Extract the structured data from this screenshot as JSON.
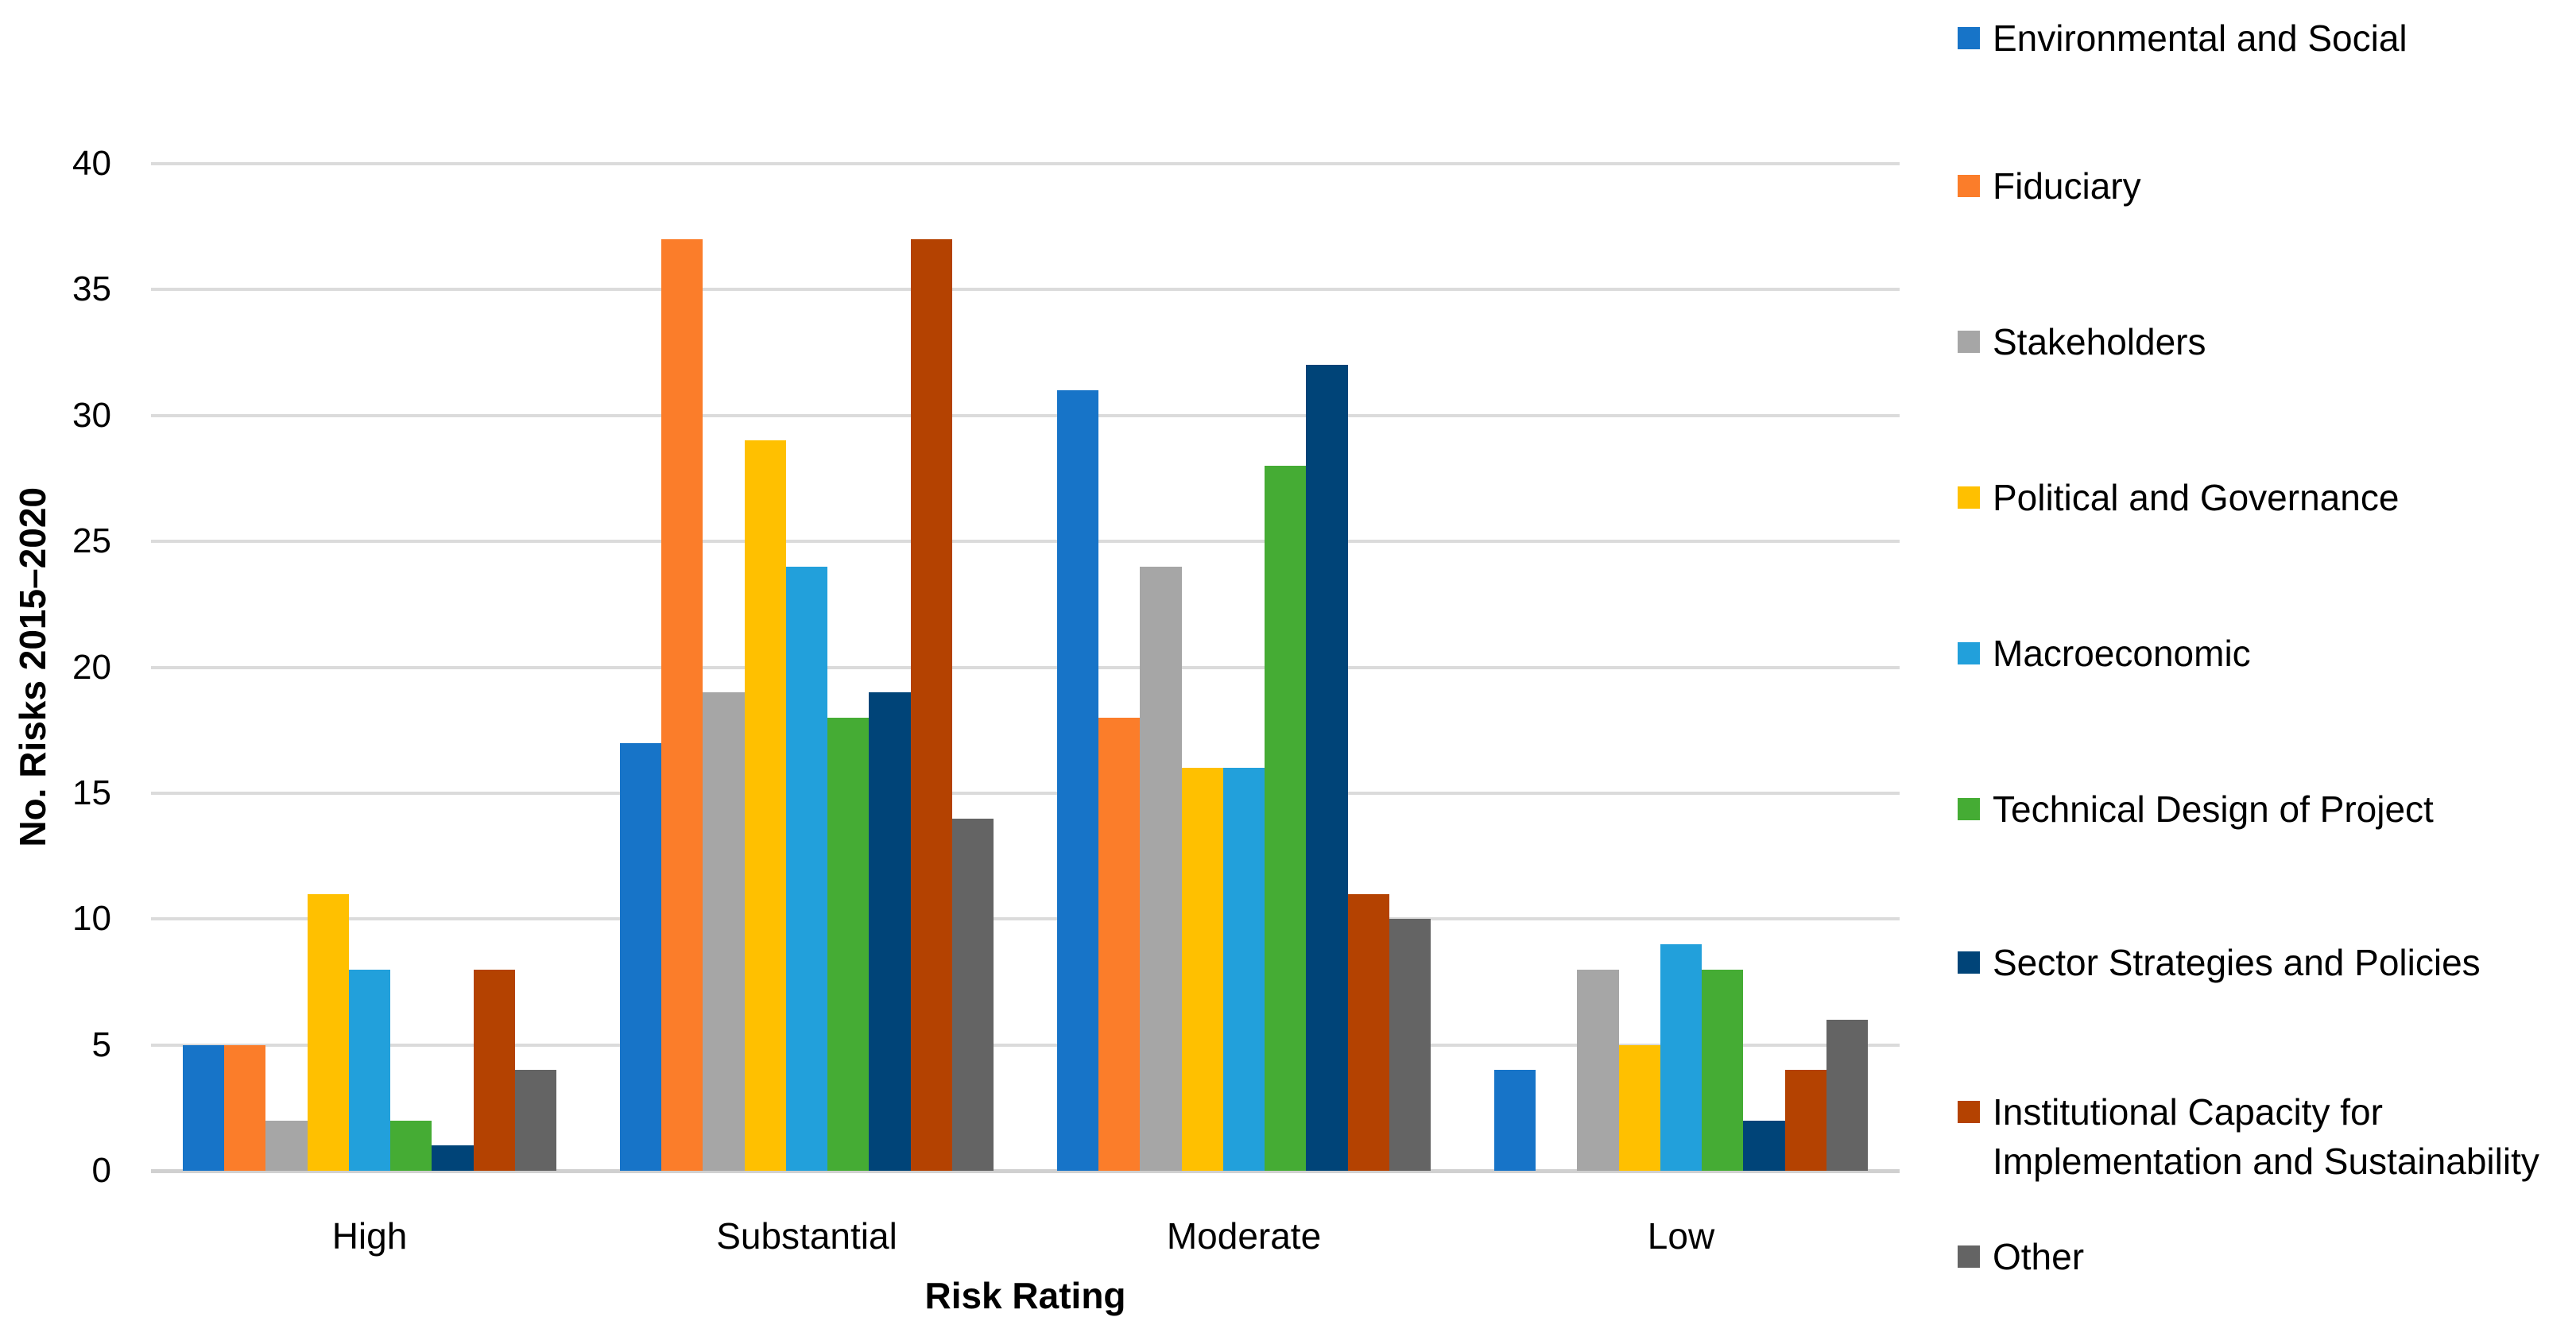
{
  "chart_data": {
    "type": "bar",
    "title": "",
    "xlabel": "Risk Rating",
    "ylabel": "No. Risks 2015–2020",
    "ylim": [
      0,
      40
    ],
    "ytick_step": 5,
    "yticks": [
      0,
      5,
      10,
      15,
      20,
      25,
      30,
      35,
      40
    ],
    "grid": true,
    "legend_position": "right",
    "categories": [
      "High",
      "Substantial",
      "Moderate",
      "Low"
    ],
    "series": [
      {
        "name": "Environmental and Social",
        "color": "#1774C8",
        "values": [
          5,
          17,
          31,
          4
        ]
      },
      {
        "name": "Fiduciary",
        "color": "#FB7D2A",
        "values": [
          5,
          37,
          18,
          0
        ]
      },
      {
        "name": "Stakeholders",
        "color": "#A6A6A6",
        "values": [
          2,
          19,
          24,
          8
        ]
      },
      {
        "name": "Political and Governance",
        "color": "#FFC000",
        "values": [
          11,
          29,
          16,
          5
        ]
      },
      {
        "name": "Macroeconomic",
        "color": "#22A0DB",
        "values": [
          8,
          24,
          16,
          9
        ]
      },
      {
        "name": "Technical Design of Project",
        "color": "#45AC34",
        "values": [
          2,
          18,
          28,
          8
        ]
      },
      {
        "name": "Sector Strategies and Policies",
        "color": "#004478",
        "values": [
          1,
          19,
          32,
          2
        ]
      },
      {
        "name": "Institutional Capacity for Implementation and Sustainability",
        "color": "#B44201",
        "values": [
          8,
          37,
          11,
          4
        ]
      },
      {
        "name": "Other",
        "color": "#646464",
        "values": [
          4,
          14,
          10,
          6
        ]
      }
    ]
  },
  "colors": {
    "background": "#FFFFFF",
    "gridline": "#DBDBDB",
    "axis_line": "#D0D0D0",
    "text": "#000000"
  }
}
